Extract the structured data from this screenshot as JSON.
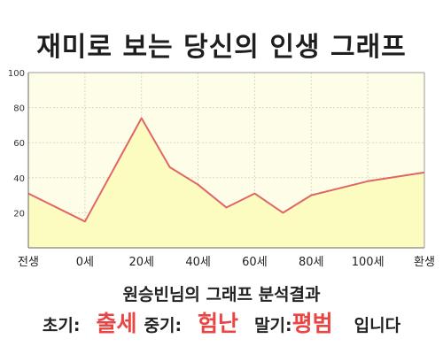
{
  "title": "재미로 보는 당신의 인생 그래프",
  "summary": {
    "heading": "원승빈님의 그래프 분석결과",
    "early_label": "초기:",
    "early_value": "출세",
    "mid_label": "중기:",
    "mid_value": "험난",
    "late_label": "말기:",
    "late_value": "평범",
    "tail": "입니다"
  },
  "colors": {
    "line": "#e06666",
    "fill": "#fdfcc0",
    "plot_bg": "#fefee8",
    "accent": "#e84545"
  },
  "chart_data": {
    "type": "area",
    "title": "재미로 보는 당신의 인생 그래프",
    "xlabel": "",
    "ylabel": "",
    "ylim": [
      0,
      100
    ],
    "yticks": [
      20,
      40,
      60,
      80,
      100
    ],
    "xticks": [
      "전생",
      "0세",
      "20세",
      "40세",
      "60세",
      "80세",
      "100세",
      "환생"
    ],
    "grid": true,
    "series": [
      {
        "points": [
          [
            0,
            31
          ],
          [
            1,
            15
          ],
          [
            2,
            74
          ],
          [
            2.5,
            46
          ],
          [
            3,
            36
          ],
          [
            3.5,
            23
          ],
          [
            4,
            31
          ],
          [
            4.5,
            20
          ],
          [
            5,
            30
          ],
          [
            6,
            38
          ],
          [
            7,
            43
          ]
        ]
      }
    ]
  }
}
